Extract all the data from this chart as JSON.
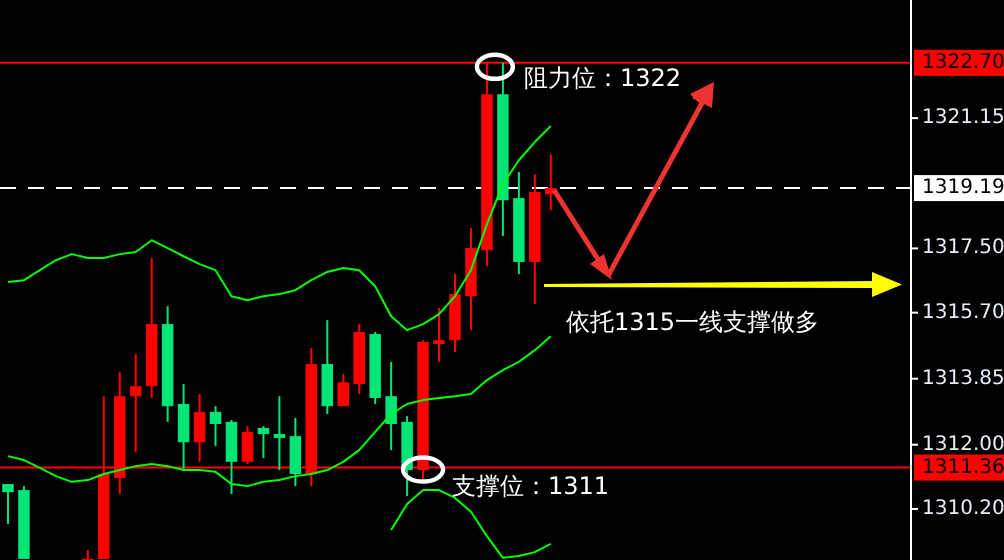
{
  "chart_data": {
    "type": "candlestick",
    "categories": [
      null,
      null,
      null,
      null,
      null,
      null,
      null,
      null,
      null,
      null,
      null,
      null,
      null,
      null,
      null,
      null,
      null,
      null,
      null,
      null,
      null,
      null,
      null,
      null,
      null,
      null,
      null,
      null,
      null,
      null,
      null,
      null,
      null,
      null,
      null,
      null,
      null,
      null,
      null,
      null,
      null,
      null,
      null,
      null,
      null,
      null,
      null,
      null,
      null,
      null,
      null,
      null,
      null,
      null,
      null,
      null,
      null
    ],
    "ohlc": [
      [
        1310.9,
        1310.9,
        1309.78,
        1310.67
      ],
      [
        1310.73,
        1310.84,
        1308.8,
        1308.8
      ],
      null,
      null,
      null,
      [
        1308.8,
        1309.05,
        1308.8,
        1308.8
      ],
      [
        1308.8,
        1313.36,
        1308.8,
        1311.18
      ],
      [
        1311.07,
        1314.04,
        1310.62,
        1313.36
      ],
      [
        1313.36,
        1314.54,
        1311.79,
        1313.64
      ],
      [
        1313.64,
        1317.23,
        1313.31,
        1315.38
      ],
      [
        1315.38,
        1315.88,
        1312.64,
        1313.08
      ],
      [
        1313.14,
        1313.7,
        1311.29,
        1312.07
      ],
      [
        1312.07,
        1313.42,
        1311.52,
        1312.92
      ],
      [
        1312.92,
        1313.08,
        1311.96,
        1312.58
      ],
      [
        1312.64,
        1312.69,
        1310.62,
        1311.52
      ],
      [
        1311.52,
        1312.52,
        1311.46,
        1312.36
      ],
      [
        1312.47,
        1312.52,
        1311.63,
        1312.3
      ],
      [
        1312.3,
        1313.36,
        1311.29,
        1312.19
      ],
      [
        1312.24,
        1312.75,
        1310.84,
        1311.18
      ],
      [
        1311.18,
        1314.71,
        1310.84,
        1314.26
      ],
      [
        1314.26,
        1315.49,
        1312.86,
        1313.08
      ],
      [
        1313.08,
        1313.98,
        1313.08,
        1313.75
      ],
      [
        1313.7,
        1315.38,
        1313.42,
        1315.16
      ],
      [
        1315.1,
        1315.16,
        1313.14,
        1313.31
      ],
      [
        1313.36,
        1314.32,
        1311.85,
        1312.58
      ],
      [
        1312.64,
        1312.8,
        1310.56,
        1311.29
      ],
      [
        1311.29,
        1314.93,
        1311.01,
        1314.88
      ],
      [
        1314.82,
        1315.83,
        1314.32,
        1314.93
      ],
      [
        1314.93,
        1316.78,
        1314.6,
        1316.22
      ],
      [
        1316.16,
        1318.07,
        1315.21,
        1317.51
      ],
      [
        1317.45,
        1322.7,
        1317.0,
        1321.82
      ],
      [
        1321.82,
        1322.7,
        1317.85,
        1318.85
      ],
      [
        1318.91,
        1319.64,
        1316.78,
        1317.12
      ],
      [
        1317.12,
        1319.58,
        1315.94,
        1319.08
      ],
      [
        1319.02,
        1320.14,
        1318.57,
        1319.19
      ],
      null,
      null,
      null,
      null,
      null,
      null,
      null,
      null,
      null,
      null,
      null,
      null,
      null,
      null,
      null,
      null,
      null,
      null,
      null,
      null,
      null,
      null
    ],
    "colors": [
      "#00e676",
      "#00e676",
      null,
      null,
      null,
      "#ff0000",
      "#ff0000",
      "#ff0000",
      "#ff0000",
      "#ff0000",
      "#00e676",
      "#00e676",
      "#ff0000",
      "#00e676",
      "#00e676",
      "#ff0000",
      "#00e676",
      "#00e676",
      "#00e676",
      "#ff0000",
      "#00e676",
      "#ff0000",
      "#ff0000",
      "#00e676",
      "#00e676",
      "#00e676",
      "#ff0000",
      "#ff0000",
      "#ff0000",
      "#ff0000",
      "#ff0000",
      "#00e676",
      "#00e676",
      "#ff0000",
      "#ff0000",
      null,
      null,
      null,
      null,
      null,
      null,
      null,
      null,
      null,
      null,
      null,
      null,
      null,
      null,
      null,
      null,
      null,
      null,
      null,
      null,
      null,
      null
    ],
    "series": [
      {
        "type": "line",
        "color": "#00ff00",
        "values": [
          1316.56,
          1316.61,
          1316.89,
          1317.17,
          1317.34,
          1317.23,
          1317.23,
          1317.34,
          1317.4,
          1317.73,
          1317.51,
          1317.28,
          1317.06,
          1316.89,
          1316.16,
          1316.05,
          1316.16,
          1316.22,
          1316.33,
          1316.61,
          1316.84,
          1316.95,
          1316.89,
          1316.44,
          1315.6,
          1315.21,
          1315.38,
          1315.66,
          1316.16,
          1316.89,
          1318.18,
          1319.3,
          1319.97,
          1320.48,
          1320.93,
          null,
          null,
          null,
          null,
          null,
          null,
          null,
          null,
          null,
          null,
          null,
          null,
          null,
          null,
          null,
          null,
          null,
          null,
          null,
          null,
          null,
          null
        ]
      },
      {
        "type": "line",
        "color": "#00ff00",
        "values": [
          1311.68,
          1311.57,
          1311.35,
          1311.12,
          1310.96,
          1311.01,
          1311.18,
          1311.29,
          1311.4,
          1311.46,
          1311.4,
          1311.29,
          1311.29,
          1311.24,
          1310.9,
          1310.84,
          1310.96,
          1311.01,
          1311.12,
          1311.18,
          1311.29,
          1311.52,
          1311.85,
          1312.36,
          1312.86,
          1313.14,
          1313.25,
          1313.31,
          1313.36,
          1313.42,
          1313.81,
          1314.09,
          1314.32,
          1314.65,
          1315.04,
          null,
          null,
          null,
          null,
          null,
          null,
          null,
          null,
          null,
          null,
          null,
          null,
          null,
          null,
          null,
          null,
          null,
          null,
          null,
          null,
          null,
          null
        ]
      },
      {
        "type": "line",
        "color": "#00ff00",
        "values": [
          null,
          null,
          null,
          null,
          null,
          null,
          null,
          null,
          null,
          null,
          null,
          null,
          null,
          null,
          null,
          null,
          null,
          null,
          null,
          null,
          null,
          null,
          null,
          null,
          1309.61,
          1310.34,
          1310.73,
          1310.73,
          1310.51,
          1310.12,
          1309.44,
          1308.83,
          1308.88,
          1308.99,
          1309.22,
          null,
          null,
          null,
          null,
          null,
          null,
          null,
          null,
          null,
          null,
          null,
          null,
          null,
          null,
          null,
          null,
          null,
          null,
          null,
          null,
          null,
          null
        ]
      }
    ],
    "ylim": [
      1308.77,
      1324.46
    ],
    "yticks": [
      {
        "value": 1321.15,
        "label": "1321.15"
      },
      {
        "value": 1317.5,
        "label": "1317.50"
      },
      {
        "value": 1315.7,
        "label": "1315.70"
      },
      {
        "value": 1313.85,
        "label": "1313.85"
      },
      {
        "value": 1312,
        "label": "1312.00"
      },
      {
        "value": 1310.2,
        "label": "1310.20"
      }
    ],
    "ref_lines": [
      {
        "axis": "y",
        "value": 1322.7,
        "label": "1322.70",
        "color": "#ff0000",
        "line_style": "solid"
      },
      {
        "axis": "y",
        "value": 1319.19,
        "label": "1319.19",
        "color": "#ffffff",
        "line_style": "dashed"
      },
      {
        "axis": "y",
        "value": 1311.36,
        "label": "1311.36",
        "color": "#ff0000",
        "line_style": "solid"
      }
    ],
    "annotations": [
      "阻力位：1322",
      "支撑位：1311",
      "依托1315一线支撑做多"
    ],
    "tick_labels": "y",
    "grid": false
  }
}
